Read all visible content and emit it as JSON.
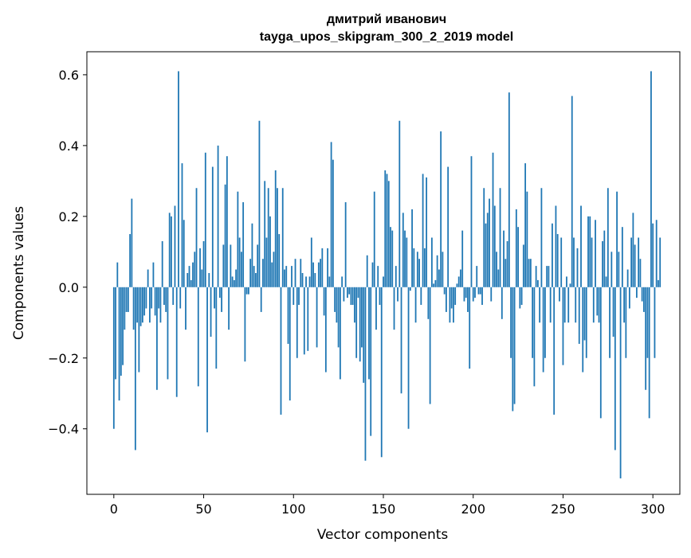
{
  "chart_data": {
    "type": "bar",
    "title": "дмитрий иванович",
    "subtitle": "tayga_upos_skipgram_300_2_2019 model",
    "xlabel": "Vector components",
    "ylabel": "Components values",
    "xlim": [
      -15,
      315
    ],
    "ylim": [
      -0.585,
      0.665
    ],
    "xticks": [
      0,
      50,
      100,
      150,
      200,
      250,
      300
    ],
    "yticks": [
      -0.4,
      -0.2,
      0.0,
      0.2,
      0.4,
      0.6
    ],
    "ytick_labels": [
      "−0.4",
      "−0.2",
      "0.0",
      "0.2",
      "0.4",
      "0.6"
    ],
    "grid": false,
    "bar_color": "#1f77b4",
    "values": [
      -0.4,
      -0.26,
      0.07,
      -0.32,
      -0.25,
      -0.22,
      -0.12,
      -0.07,
      -0.07,
      0.15,
      0.25,
      -0.12,
      -0.46,
      -0.1,
      -0.24,
      -0.11,
      -0.1,
      -0.08,
      -0.06,
      0.05,
      -0.1,
      -0.06,
      0.07,
      -0.08,
      -0.29,
      -0.06,
      -0.1,
      0.13,
      -0.05,
      -0.07,
      -0.26,
      0.21,
      0.2,
      -0.05,
      0.23,
      -0.31,
      0.61,
      -0.06,
      0.35,
      0.19,
      -0.12,
      0.04,
      0.06,
      0.02,
      0.07,
      0.1,
      0.28,
      -0.28,
      0.11,
      0.05,
      0.13,
      0.38,
      -0.41,
      0.04,
      -0.14,
      0.34,
      -0.06,
      -0.23,
      0.4,
      -0.03,
      -0.07,
      0.12,
      0.29,
      0.37,
      -0.12,
      0.12,
      0.03,
      0.02,
      0.05,
      0.27,
      0.14,
      0.1,
      0.24,
      -0.21,
      -0.02,
      -0.02,
      0.08,
      0.18,
      0.06,
      0.04,
      0.12,
      0.47,
      -0.07,
      0.08,
      0.3,
      0.14,
      0.28,
      0.2,
      0.07,
      0.1,
      0.33,
      0.28,
      0.15,
      -0.36,
      0.28,
      0.05,
      0.06,
      -0.16,
      -0.32,
      0.06,
      -0.05,
      0.08,
      -0.2,
      -0.05,
      0.08,
      0.04,
      -0.19,
      0.03,
      -0.18,
      0.03,
      0.14,
      0.07,
      0.04,
      -0.17,
      0.07,
      0.08,
      0.11,
      -0.08,
      -0.24,
      0.11,
      0.03,
      0.41,
      0.36,
      -0.07,
      -0.1,
      -0.17,
      -0.26,
      0.03,
      -0.04,
      0.24,
      -0.03,
      -0.02,
      -0.05,
      -0.05,
      -0.1,
      -0.2,
      -0.03,
      -0.21,
      -0.17,
      -0.27,
      -0.49,
      0.09,
      -0.26,
      -0.42,
      0.07,
      0.27,
      -0.12,
      0.06,
      -0.05,
      -0.48,
      0.03,
      0.33,
      0.32,
      0.3,
      0.17,
      0.16,
      -0.12,
      0.06,
      -0.04,
      0.47,
      -0.3,
      0.21,
      0.16,
      0.14,
      -0.4,
      -0.01,
      0.22,
      0.11,
      -0.1,
      0.1,
      0.08,
      -0.05,
      0.32,
      0.11,
      0.31,
      -0.09,
      -0.33,
      0.14,
      0.01,
      0.02,
      0.09,
      0.05,
      0.44,
      0.1,
      -0.02,
      -0.07,
      0.34,
      -0.1,
      -0.06,
      -0.1,
      -0.05,
      0.01,
      0.03,
      0.05,
      0.16,
      -0.04,
      -0.03,
      -0.07,
      -0.23,
      0.37,
      -0.04,
      -0.03,
      0.06,
      -0.02,
      -0.02,
      -0.05,
      0.28,
      0.18,
      0.21,
      0.25,
      -0.04,
      0.38,
      0.23,
      0.1,
      0.05,
      0.28,
      -0.09,
      0.16,
      0.08,
      0.13,
      0.55,
      -0.2,
      -0.35,
      -0.33,
      0.22,
      0.17,
      -0.06,
      -0.05,
      0.12,
      0.35,
      0.27,
      0.08,
      0.08,
      -0.2,
      -0.28,
      0.06,
      0.02,
      -0.1,
      0.28,
      -0.24,
      -0.2,
      0.06,
      0.06,
      -0.1,
      0.18,
      -0.36,
      0.23,
      0.15,
      -0.04,
      0.14,
      -0.22,
      -0.1,
      0.03,
      -0.1,
      0.01,
      0.54,
      0.14,
      -0.1,
      0.11,
      -0.16,
      0.23,
      -0.24,
      -0.15,
      -0.2,
      0.2,
      0.2,
      0.14,
      -0.1,
      0.19,
      -0.08,
      -0.1,
      -0.37,
      0.13,
      0.16,
      0.03,
      0.28,
      -0.2,
      0.1,
      -0.14,
      -0.46,
      0.27,
      0.1,
      -0.54,
      0.17,
      -0.1,
      -0.2,
      0.05,
      -0.06,
      0.14,
      0.21,
      0.12,
      -0.03,
      0.14,
      0.08,
      -0.04,
      -0.07,
      -0.29,
      -0.2,
      -0.37,
      0.61,
      0.18,
      -0.2,
      0.19,
      0.02,
      0.14
    ]
  }
}
